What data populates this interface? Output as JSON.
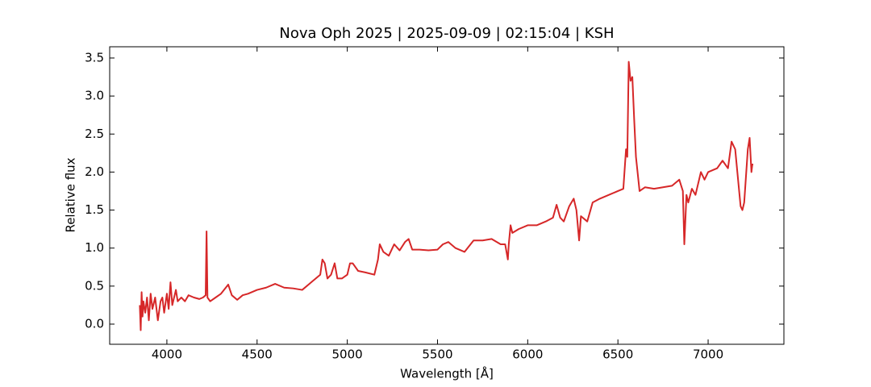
{
  "chart_data": {
    "type": "line",
    "title": "Nova Oph 2025 | 2025-09-09 | 02:15:04 | KSH",
    "x_label": "Wavelength [Å]",
    "y_label": "Relative flux",
    "xlim": [
      3683,
      7420
    ],
    "ylim": [
      -0.265,
      3.648
    ],
    "xticks": [
      4000,
      4500,
      5000,
      5500,
      6000,
      6500,
      7000
    ],
    "yticks": [
      {
        "value": 0,
        "label": "0.0"
      },
      0.5,
      {
        "value": 1,
        "label": "1.0"
      },
      1.5,
      {
        "value": 2,
        "label": "2.0"
      },
      2.5,
      {
        "value": 3,
        "label": "3.0"
      },
      3.5
    ],
    "grid": false,
    "x": [
      3850,
      3855,
      3860,
      3865,
      3870,
      3880,
      3890,
      3900,
      3910,
      3920,
      3935,
      3950,
      3965,
      3975,
      3985,
      4000,
      4010,
      4020,
      4030,
      4050,
      4060,
      4080,
      4100,
      4120,
      4150,
      4180,
      4200,
      4215,
      4220,
      4225,
      4240,
      4270,
      4300,
      4340,
      4360,
      4390,
      4420,
      4450,
      4500,
      4550,
      4600,
      4650,
      4700,
      4750,
      4800,
      4850,
      4862,
      4875,
      4890,
      4910,
      4930,
      4945,
      4970,
      5000,
      5015,
      5030,
      5060,
      5100,
      5150,
      5170,
      5180,
      5200,
      5230,
      5260,
      5290,
      5320,
      5340,
      5360,
      5400,
      5450,
      5500,
      5530,
      5560,
      5600,
      5650,
      5700,
      5750,
      5800,
      5850,
      5875,
      5890,
      5895,
      5905,
      5915,
      5950,
      6000,
      6050,
      6100,
      6140,
      6160,
      6180,
      6200,
      6230,
      6255,
      6270,
      6285,
      6295,
      6330,
      6360,
      6400,
      6450,
      6500,
      6530,
      6545,
      6552,
      6560,
      6570,
      6580,
      6590,
      6600,
      6620,
      6650,
      6700,
      6750,
      6800,
      6840,
      6860,
      6868,
      6880,
      6890,
      6910,
      6930,
      6960,
      6980,
      7000,
      7050,
      7080,
      7110,
      7130,
      7150,
      7170,
      7180,
      7190,
      7200,
      7220,
      7230,
      7240,
      7245,
      7250
    ],
    "series": [
      {
        "color": "#d62728",
        "values": [
          0.25,
          -0.08,
          0.42,
          0.1,
          0.3,
          0.15,
          0.35,
          0.05,
          0.4,
          0.2,
          0.35,
          0.05,
          0.3,
          0.35,
          0.15,
          0.4,
          0.2,
          0.55,
          0.25,
          0.45,
          0.3,
          0.35,
          0.3,
          0.38,
          0.35,
          0.33,
          0.35,
          0.38,
          1.22,
          0.35,
          0.3,
          0.35,
          0.4,
          0.52,
          0.38,
          0.32,
          0.38,
          0.4,
          0.45,
          0.48,
          0.53,
          0.48,
          0.47,
          0.45,
          0.55,
          0.65,
          0.85,
          0.8,
          0.6,
          0.65,
          0.8,
          0.6,
          0.6,
          0.65,
          0.8,
          0.8,
          0.7,
          0.68,
          0.65,
          0.85,
          1.05,
          0.95,
          0.9,
          1.05,
          0.97,
          1.08,
          1.12,
          0.98,
          0.98,
          0.97,
          0.98,
          1.05,
          1.08,
          1.0,
          0.95,
          1.1,
          1.1,
          1.12,
          1.05,
          1.05,
          0.85,
          1.05,
          1.3,
          1.2,
          1.25,
          1.3,
          1.3,
          1.35,
          1.4,
          1.57,
          1.4,
          1.35,
          1.55,
          1.65,
          1.5,
          1.1,
          1.42,
          1.35,
          1.6,
          1.65,
          1.7,
          1.75,
          1.78,
          2.3,
          2.2,
          3.45,
          3.2,
          3.25,
          2.7,
          2.2,
          1.75,
          1.8,
          1.78,
          1.8,
          1.82,
          1.9,
          1.75,
          1.05,
          1.7,
          1.6,
          1.78,
          1.7,
          2.0,
          1.9,
          2.0,
          2.05,
          2.15,
          2.05,
          2.4,
          2.3,
          1.8,
          1.55,
          1.5,
          1.6,
          2.3,
          2.45,
          2.0,
          2.1,
          2.1
        ]
      }
    ]
  }
}
